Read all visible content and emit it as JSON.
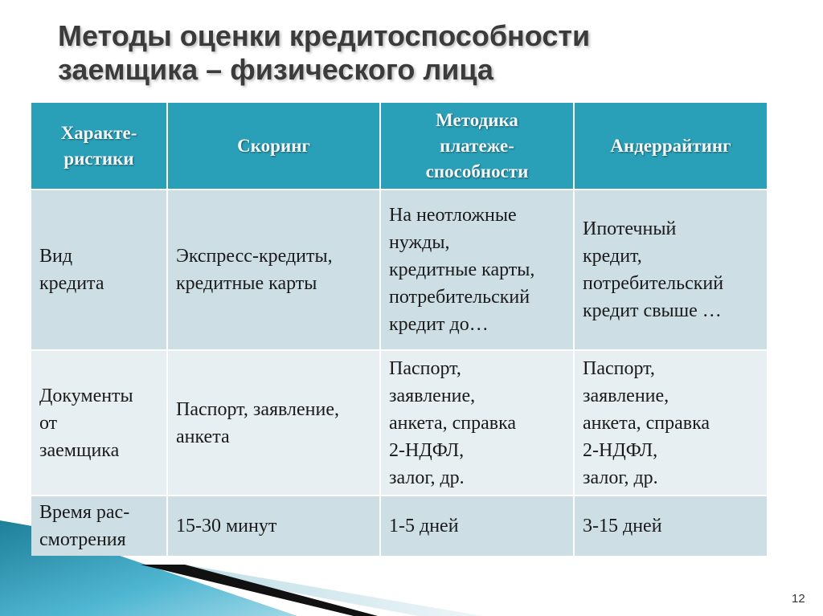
{
  "slide": {
    "title_line1": "Методы оценки кредитоспособности",
    "title_line2": "заемщика – физического лица",
    "page_number": "12",
    "colors": {
      "header": "#2aa0b8",
      "row_dark": "#cddfe5",
      "row_light": "#e7eff2",
      "title": "#3b3b3b"
    }
  },
  "table": {
    "headers": [
      "Характе-\nристики",
      "Скоринг",
      "Методика\nплатеже-\nспособности",
      "Андеррайтинг"
    ],
    "rows": [
      [
        "Вид\nкредита",
        "Экспресс-кредиты,\nкредитные карты",
        "На неотложные\nнужды,\nкредитные карты,\nпотребительский\nкредит до…",
        "Ипотечный\nкредит,\nпотребительский\nкредит свыше …"
      ],
      [
        "Документы\nот\nзаемщика",
        "Паспорт, заявление,\nанкета",
        "Паспорт,\nзаявление,\nанкета, справка\n2-НДФЛ,\nзалог, др.",
        "Паспорт,\nзаявление,\nанкета, справка\n2-НДФЛ,\nзалог, др."
      ],
      [
        "Время рас-\nсмотрения",
        "15-30 минут",
        "1-5 дней",
        "3-15 дней"
      ]
    ]
  }
}
